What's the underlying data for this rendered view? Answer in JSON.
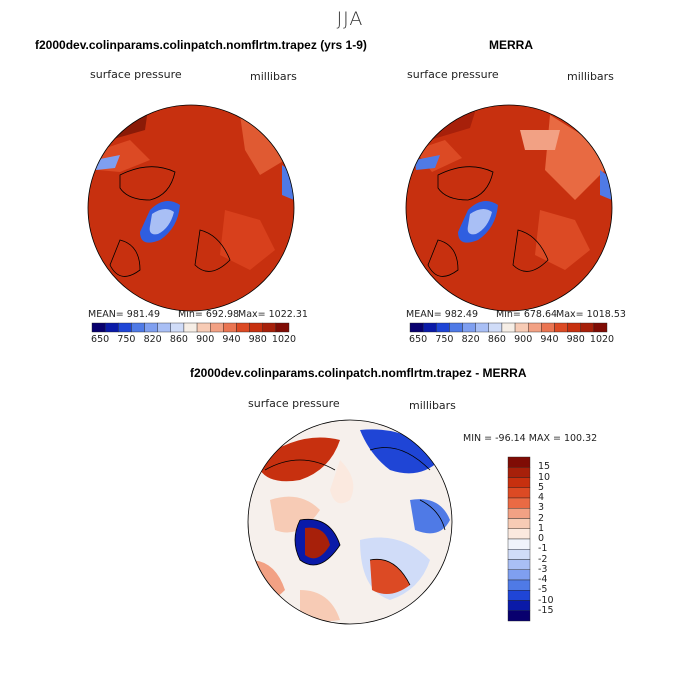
{
  "figure": {
    "season": "JJA",
    "panels": [
      {
        "title": "f2000dev.colinparams.colinpatch.nomflrtm.trapez (yrs 1-9)",
        "variable": "surface pressure",
        "units": "millibars",
        "mean_label": "MEAN= 981.49",
        "min_label": "Min= 692.98",
        "max_label": "Max= 1022.31",
        "mean": 981.49,
        "min": 692.98,
        "max": 1022.31
      },
      {
        "title": "MERRA",
        "variable": "surface pressure",
        "units": "millibars",
        "mean_label": "MEAN= 982.49",
        "min_label": "Min= 678.64",
        "max_label": "Max= 1018.53",
        "mean": 982.49,
        "min": 678.64,
        "max": 1018.53
      },
      {
        "title": "f2000dev.colinparams.colinpatch.nomflrtm.trapez - MERRA",
        "variable": "surface pressure",
        "units": "millibars",
        "minmax_label": "MIN = -96.14  MAX = 100.32",
        "min": -96.14,
        "max": 100.32
      }
    ],
    "colorbar_abs": {
      "tick_labels": [
        "650",
        "750",
        "820",
        "860",
        "900",
        "940",
        "980",
        "1020"
      ],
      "colors": [
        "#08006e",
        "#0a1aa8",
        "#1f45d6",
        "#4f7ae6",
        "#7f9ff0",
        "#a9bff5",
        "#d0dcf8",
        "#f6eee6",
        "#f7cbb5",
        "#f2a184",
        "#ea7552",
        "#dc4a24",
        "#c7300f",
        "#a7200a",
        "#7f0c05"
      ]
    },
    "colorbar_diff": {
      "tick_labels": [
        "15",
        "10",
        "5",
        "4",
        "3",
        "2",
        "1",
        "0",
        "-1",
        "-2",
        "-3",
        "-4",
        "-5",
        "-10",
        "-15"
      ],
      "colors": [
        "#7f0c05",
        "#a7200a",
        "#c7300f",
        "#dc4a24",
        "#ea6a44",
        "#f2a184",
        "#f7cbb5",
        "#fbe9df",
        "#f0f3fb",
        "#d0dcf8",
        "#a9bff5",
        "#7f9ff0",
        "#4f7ae6",
        "#1f45d6",
        "#0a1aa8",
        "#08006e"
      ]
    }
  }
}
